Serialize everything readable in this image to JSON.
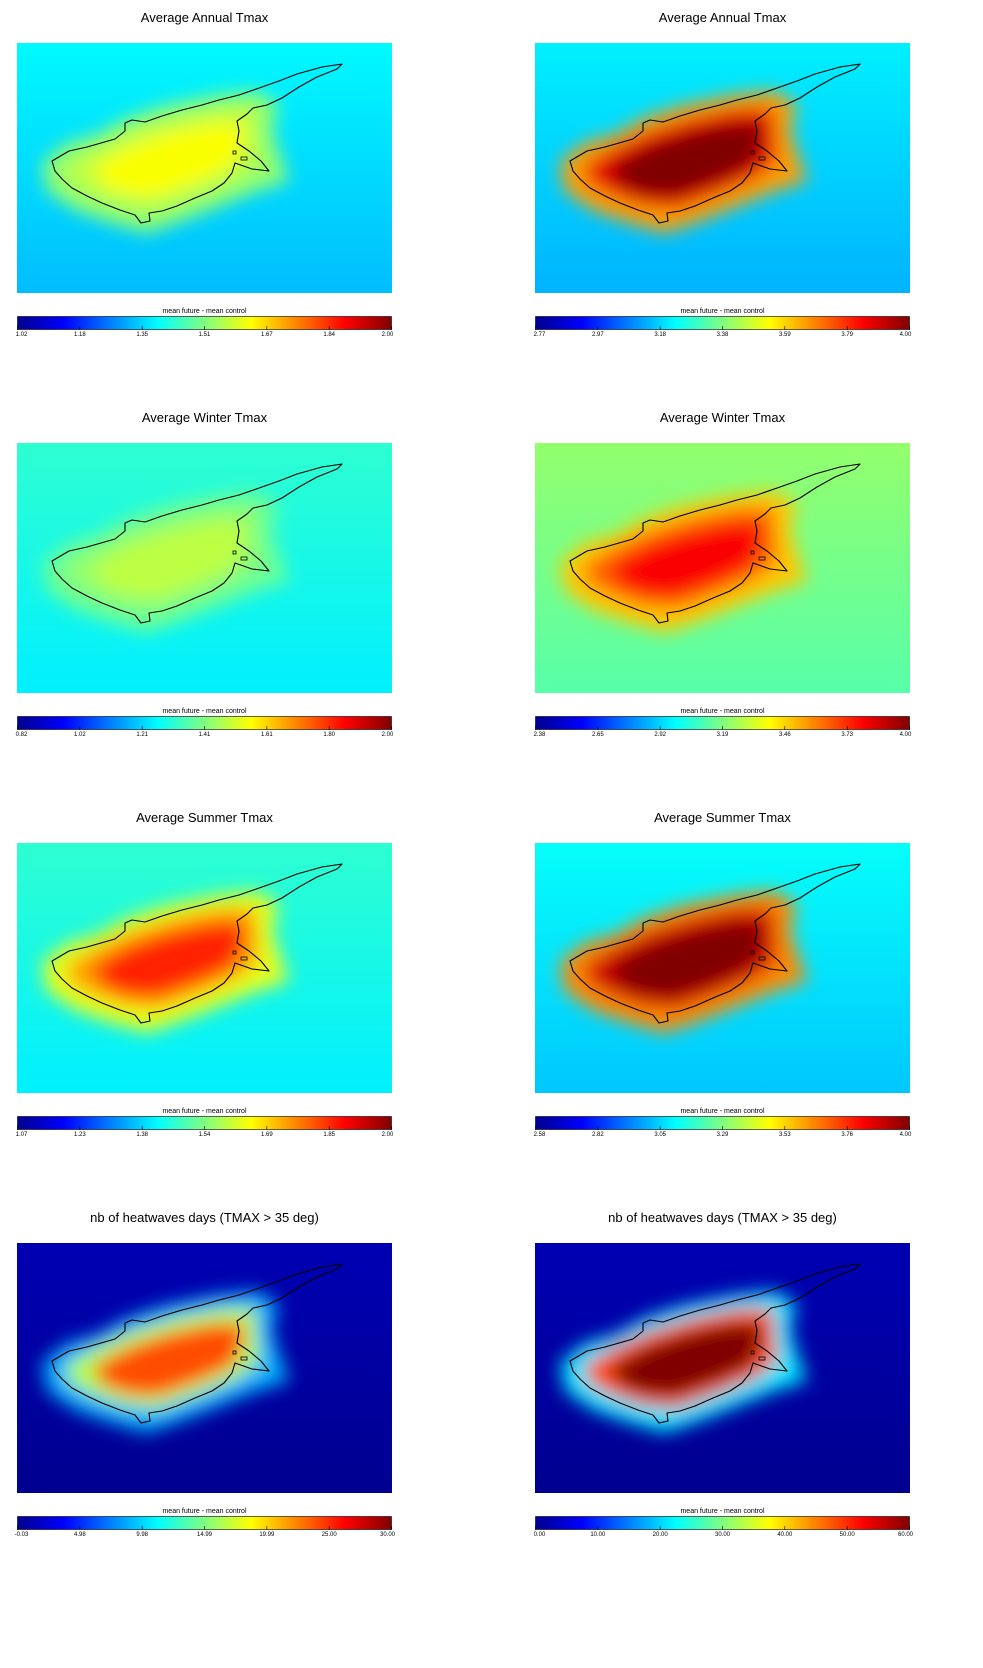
{
  "colormap": [
    "#00008f",
    "#0000ff",
    "#0080ff",
    "#00ffff",
    "#80ff80",
    "#ffff00",
    "#ff8000",
    "#ff0000",
    "#800000"
  ],
  "outline_color": "#000000",
  "panels": [
    {
      "title": "Average Annual Tmax",
      "colorbar_label": "mean future - mean control",
      "ticks": [
        "1.02",
        "1.18",
        "1.35",
        "1.51",
        "1.67",
        "1.84",
        "2.00"
      ],
      "background_level": 0.35,
      "island_levels": [
        0.52,
        0.56,
        0.62
      ]
    },
    {
      "title": "Average Annual Tmax",
      "colorbar_label": "mean future - mean control",
      "ticks": [
        "2.77",
        "2.97",
        "3.18",
        "3.38",
        "3.59",
        "3.79",
        "4.00"
      ],
      "background_level": 0.34,
      "island_levels": [
        0.72,
        0.9,
        1.0
      ]
    },
    {
      "title": "Average Winter Tmax",
      "colorbar_label": "mean future - mean control",
      "ticks": [
        "0.82",
        "1.02",
        "1.21",
        "1.41",
        "1.61",
        "1.80",
        "2.00"
      ],
      "background_level": 0.4,
      "island_levels": [
        0.48,
        0.52,
        0.56
      ]
    },
    {
      "title": "Average Winter Tmax",
      "colorbar_label": "mean future - mean control",
      "ticks": [
        "2.38",
        "2.65",
        "2.92",
        "3.19",
        "3.46",
        "3.73",
        "4.00"
      ],
      "background_level": 0.5,
      "island_levels": [
        0.68,
        0.78,
        0.88
      ]
    },
    {
      "title": "Average Summer Tmax",
      "colorbar_label": "mean future - mean control",
      "ticks": [
        "1.07",
        "1.23",
        "1.38",
        "1.54",
        "1.69",
        "1.85",
        "2.00"
      ],
      "background_level": 0.4,
      "island_levels": [
        0.6,
        0.72,
        0.84
      ]
    },
    {
      "title": "Average Summer Tmax",
      "colorbar_label": "mean future - mean control",
      "ticks": [
        "2.58",
        "2.82",
        "3.05",
        "3.29",
        "3.53",
        "3.76",
        "4.00"
      ],
      "background_level": 0.36,
      "island_levels": [
        0.74,
        0.92,
        1.0
      ]
    },
    {
      "title": "nb of heatwaves days (TMAX > 35 deg)",
      "colorbar_label": "mean future - mean control",
      "ticks": [
        "-0.03",
        "4.98",
        "9.98",
        "14.99",
        "19.99",
        "25.00",
        "30.00"
      ],
      "background_level": 0.02,
      "island_levels": [
        0.3,
        0.55,
        0.8
      ]
    },
    {
      "title": "nb of heatwaves days (TMAX > 35 deg)",
      "colorbar_label": "mean future - mean control",
      "ticks": [
        "0.00",
        "10.00",
        "20.00",
        "30.00",
        "40.00",
        "50.00",
        "60.00"
      ],
      "background_level": 0.02,
      "island_levels": [
        0.35,
        0.8,
        1.0
      ]
    }
  ]
}
